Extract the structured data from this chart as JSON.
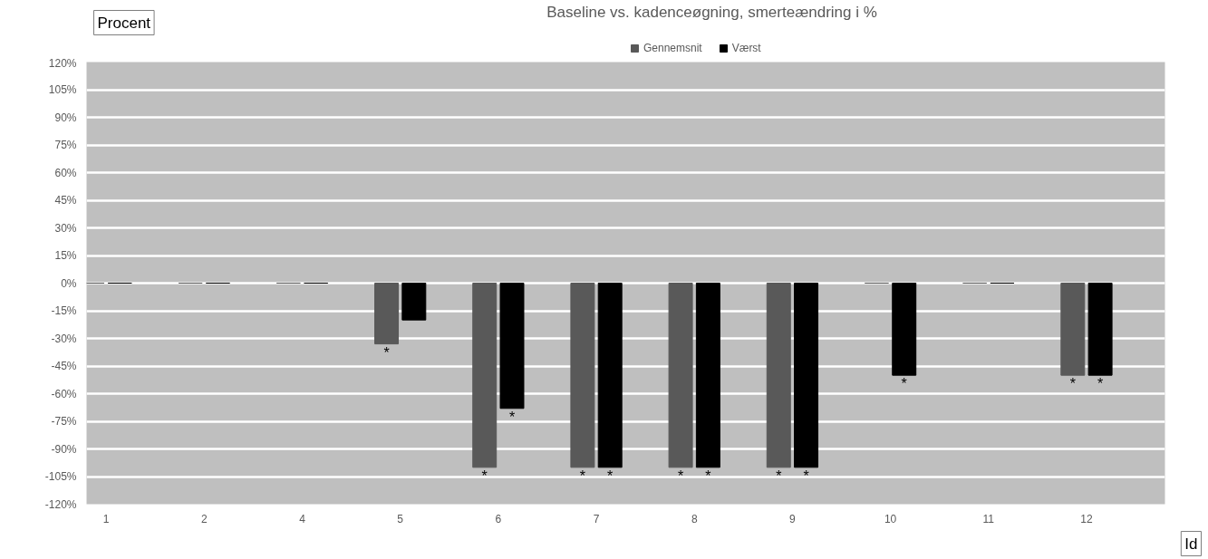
{
  "chart_data": {
    "type": "bar",
    "title": "Baseline vs. kadenceøgning, smerteændring i %",
    "xlabel": "Id",
    "ylabel": "Procent",
    "categories": [
      "1",
      "2",
      "4",
      "5",
      "6",
      "7",
      "8",
      "9",
      "10",
      "11",
      "12"
    ],
    "series": [
      {
        "name": "Gennemsnit",
        "color": "#595959",
        "values": [
          0,
          0,
          0,
          -33,
          -100,
          -100,
          -100,
          -100,
          0,
          0,
          -50
        ]
      },
      {
        "name": "Værst",
        "color": "#000000",
        "values": [
          0,
          0,
          0,
          -20,
          -68,
          -100,
          -100,
          -100,
          -50,
          0,
          -50
        ]
      }
    ],
    "ylim": [
      -120,
      120
    ],
    "yticks": [
      {
        "value": 120,
        "label": "120%"
      },
      {
        "value": 105,
        "label": "105%"
      },
      {
        "value": 90,
        "label": "90%"
      },
      {
        "value": 75,
        "label": "75%"
      },
      {
        "value": 60,
        "label": "60%"
      },
      {
        "value": 45,
        "label": "45%"
      },
      {
        "value": 30,
        "label": "30%"
      },
      {
        "value": 15,
        "label": "15%"
      },
      {
        "value": 0,
        "label": "0%"
      },
      {
        "value": -15,
        "label": "-15%"
      },
      {
        "value": -30,
        "label": "-30%"
      },
      {
        "value": -45,
        "label": "-45%"
      },
      {
        "value": -60,
        "label": "-60%"
      },
      {
        "value": -75,
        "label": "-75%"
      },
      {
        "value": -90,
        "label": "-90%"
      },
      {
        "value": -105,
        "label": "-105%"
      },
      {
        "value": -120,
        "label": "-120%"
      }
    ],
    "grid": "y",
    "legend": "top",
    "annotations": [
      {
        "text": "*",
        "x": "5",
        "y": -33
      },
      {
        "text": "*",
        "x": "6",
        "y": -100
      },
      {
        "text": "*",
        "x": "6",
        "y": -68
      },
      {
        "text": "*",
        "x": "7",
        "y": -100
      },
      {
        "text": "*",
        "x": "7",
        "y": -100
      },
      {
        "text": "*",
        "x": "8",
        "y": -100
      },
      {
        "text": "*",
        "x": "8",
        "y": -100
      },
      {
        "text": "*",
        "x": "9",
        "y": -100
      },
      {
        "text": "*",
        "x": "9",
        "y": -100
      },
      {
        "text": "*",
        "x": "10",
        "y": -50
      },
      {
        "text": "*",
        "x": "12",
        "y": -50
      },
      {
        "text": "*",
        "x": "12",
        "y": -50
      }
    ]
  }
}
